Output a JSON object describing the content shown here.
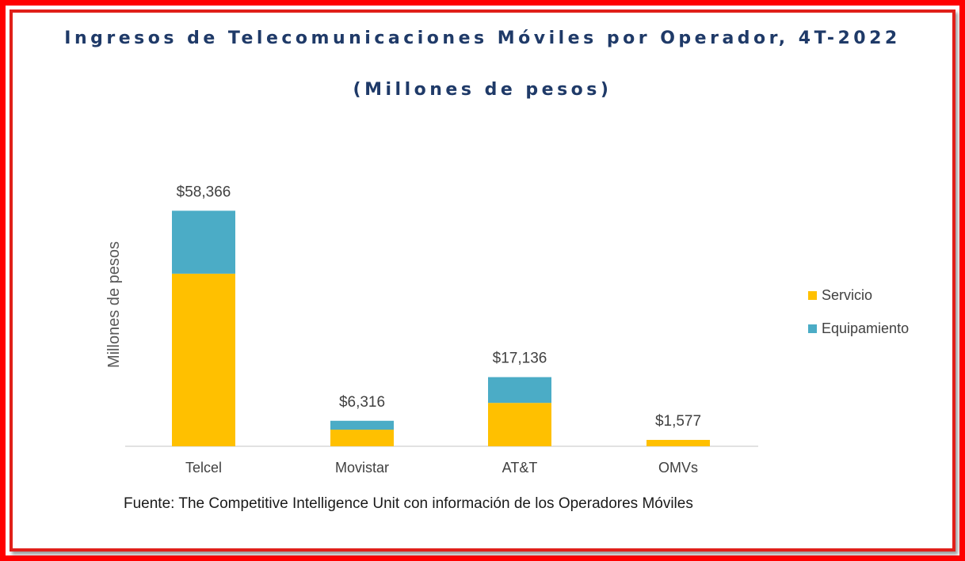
{
  "chart_data": {
    "type": "stacked-bar",
    "title": "Ingresos de Telecomunicaciones Móviles por Operador, 4T-2022",
    "subtitle": "(Millones de pesos)",
    "ylabel": "Millones de pesos",
    "xlabel": "",
    "categories": [
      "Telcel",
      "Movistar",
      "AT&T",
      "OMVs"
    ],
    "series": [
      {
        "name": "Servicio",
        "color": "#ffc000",
        "values": [
          42770,
          4120,
          10750,
          1577
        ]
      },
      {
        "name": "Equipamiento",
        "color": "#4bacc6",
        "values": [
          15596,
          2196,
          6386,
          0
        ]
      }
    ],
    "totals": [
      58366,
      6316,
      17136,
      1577
    ],
    "total_labels": [
      "$58,366",
      "$6,316",
      "$17,136",
      "$1,577"
    ],
    "ylim": [
      0,
      60000
    ],
    "grid": false,
    "legend_position": "right",
    "source": "Fuente: The Competitive Intelligence Unit con información de los Operadores Móviles"
  }
}
